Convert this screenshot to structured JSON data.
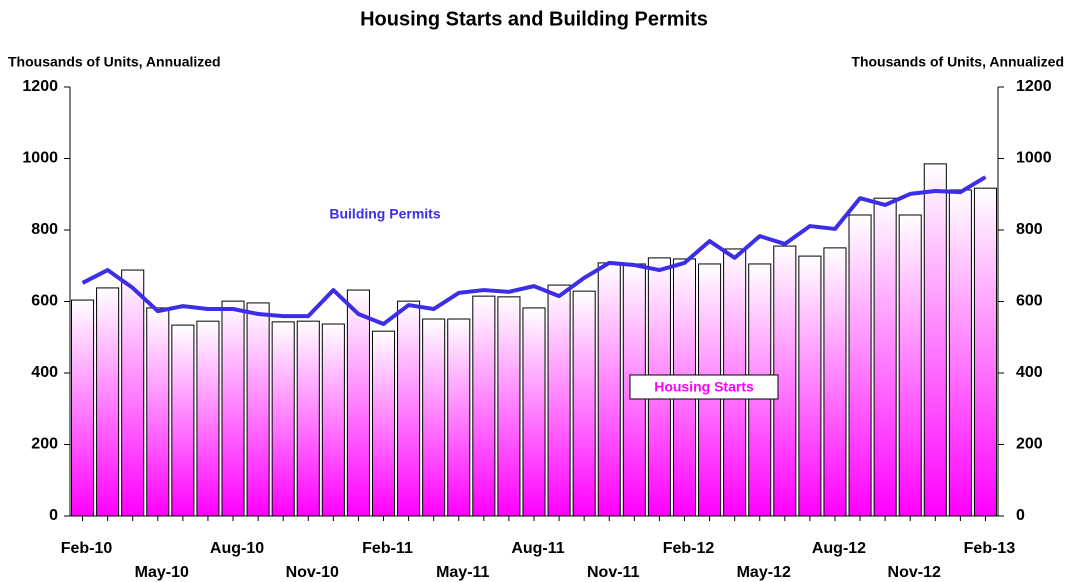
{
  "chart_data": {
    "type": "bar",
    "title": "Housing Starts and Building Permits",
    "y_label": "Thousands of Units, Annualized",
    "y2_label": "Thousands of Units, Annualized",
    "categories": [
      "Feb-10",
      null,
      null,
      "May-10",
      null,
      null,
      "Aug-10",
      null,
      null,
      "Nov-10",
      null,
      null,
      "Feb-11",
      null,
      null,
      "May-11",
      null,
      null,
      "Aug-11",
      null,
      null,
      "Nov-11",
      null,
      null,
      "Feb-12",
      null,
      null,
      "May-12",
      null,
      null,
      "Aug-12",
      null,
      null,
      "Nov-12",
      null,
      null,
      "Feb-13"
    ],
    "series": [
      {
        "name": "Housing Starts",
        "type": "bar",
        "color": "#ff00ff",
        "values": [
          604,
          638,
          688,
          582,
          534,
          545,
          601,
          596,
          543,
          545,
          537,
          632,
          517,
          601,
          551,
          551,
          615,
          613,
          582,
          646,
          629,
          708,
          705,
          722,
          719,
          705,
          747,
          705,
          755,
          727,
          750,
          842,
          889,
          842,
          985,
          912,
          917
        ]
      },
      {
        "name": "Building Permits",
        "type": "line",
        "color": "#3b2ee6",
        "axis": "y2",
        "values": [
          652,
          688,
          638,
          573,
          587,
          579,
          579,
          565,
          559,
          559,
          632,
          565,
          537,
          590,
          579,
          624,
          632,
          627,
          643,
          615,
          666,
          708,
          702,
          688,
          708,
          769,
          722,
          783,
          761,
          811,
          803,
          889,
          870,
          901,
          909,
          906,
          948
        ]
      }
    ],
    "ylim": [
      0,
      1200
    ],
    "yticks": [
      0,
      200,
      400,
      600,
      800,
      1000,
      1200
    ],
    "y2lim": [
      0,
      1200
    ],
    "y2ticks": [
      0,
      200,
      400,
      600,
      800,
      1000,
      1200
    ]
  }
}
